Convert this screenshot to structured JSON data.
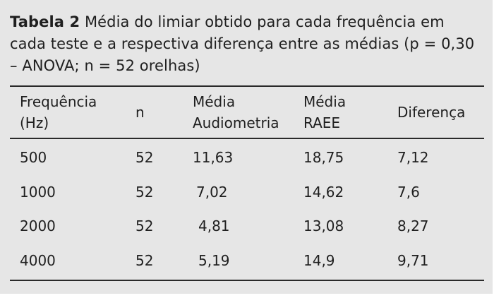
{
  "caption": {
    "label": "Tabela 2",
    "text": "Média do limiar obtido para cada frequência em cada teste e a respectiva diferença entre as médias (p = 0,30 – ANOVA; n = 52 orelhas)"
  },
  "table": {
    "headers": {
      "freq_line1": "Frequência",
      "freq_line2": "(Hz)",
      "n": "n",
      "aud_line1": "Média",
      "aud_line2": "Audiometria",
      "raee_line1": "Média",
      "raee_line2": "RAEE",
      "diff": "Diferença"
    },
    "rows": [
      {
        "freq": "500",
        "n": "52",
        "aud": "11,63",
        "raee": "18,75",
        "diff": "7,12"
      },
      {
        "freq": "1000",
        "n": "52",
        "aud": "7,02",
        "raee": "14,62",
        "diff": "7,6"
      },
      {
        "freq": "2000",
        "n": "52",
        "aud": "4,81",
        "raee": "13,08",
        "diff": "8,27"
      },
      {
        "freq": "4000",
        "n": "52",
        "aud": "5,19",
        "raee": "14,9",
        "diff": "9,71"
      }
    ]
  }
}
